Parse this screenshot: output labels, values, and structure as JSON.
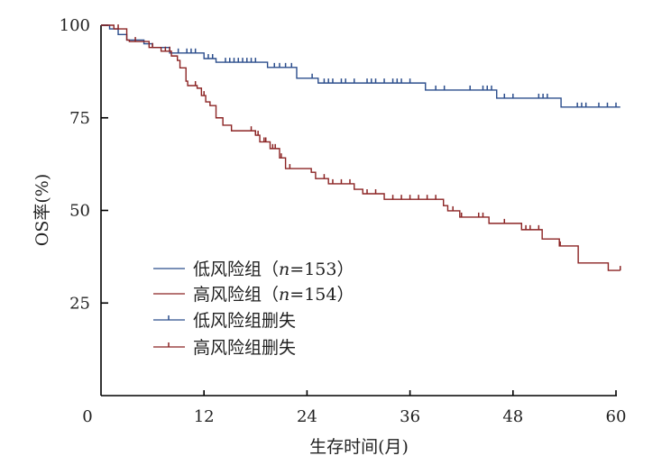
{
  "chart_data": {
    "type": "line",
    "subtype": "kaplan-meier",
    "xlabel": "生存时间(月)",
    "ylabel": "OS率(%)",
    "xlim": [
      0,
      60
    ],
    "ylim": [
      0,
      100
    ],
    "xticks": [
      0,
      12,
      24,
      36,
      48,
      60
    ],
    "yticks": [
      25,
      50,
      75,
      100
    ],
    "legend_position": "lower-left",
    "series": [
      {
        "name": "低风险组",
        "n_label": "n",
        "n_value": "=153）",
        "paren": "（",
        "color": "#2b4d8c",
        "steps": [
          [
            0,
            100
          ],
          [
            1,
            99
          ],
          [
            2,
            97.5
          ],
          [
            3,
            96
          ],
          [
            5,
            95
          ],
          [
            6,
            94
          ],
          [
            8,
            92.5
          ],
          [
            12,
            91
          ],
          [
            13.4,
            90
          ],
          [
            19.4,
            88.6
          ],
          [
            22.8,
            85.7
          ],
          [
            25.3,
            84.4
          ],
          [
            37.8,
            82.5
          ],
          [
            46.1,
            80.3
          ],
          [
            53.6,
            77.9
          ],
          [
            60.5,
            77.9
          ]
        ],
        "censored": [
          9,
          10,
          10.5,
          11,
          12.5,
          13,
          14.5,
          15,
          15.5,
          16,
          16.5,
          17,
          17.5,
          18,
          20.2,
          20.8,
          21.5,
          22.2,
          24.6,
          26,
          26.5,
          27,
          28,
          28.5,
          29.5,
          31,
          31.5,
          32,
          33,
          34,
          34.5,
          35,
          36,
          39,
          40,
          43,
          44.5,
          45,
          45.5,
          47,
          48,
          51,
          51.5,
          52,
          55.5,
          56,
          56.5,
          58,
          59,
          60
        ]
      },
      {
        "name": "高风险组",
        "n_label": "n",
        "n_value": "=154）",
        "paren": "（",
        "color": "#8b2323",
        "steps": [
          [
            0,
            100
          ],
          [
            1.5,
            99
          ],
          [
            3,
            96
          ],
          [
            3.3,
            95.6
          ],
          [
            5.6,
            94
          ],
          [
            7,
            93
          ],
          [
            8.2,
            91.7
          ],
          [
            8.9,
            90.5
          ],
          [
            9.2,
            88.5
          ],
          [
            9.9,
            84.9
          ],
          [
            10.1,
            83.7
          ],
          [
            11.2,
            83
          ],
          [
            11.7,
            81
          ],
          [
            12.2,
            79.3
          ],
          [
            12.7,
            78.3
          ],
          [
            13.4,
            75
          ],
          [
            14.2,
            73
          ],
          [
            15.2,
            71.5
          ],
          [
            18,
            70.3
          ],
          [
            18.5,
            68.5
          ],
          [
            19.7,
            66.7
          ],
          [
            20.8,
            64.2
          ],
          [
            21.5,
            61.3
          ],
          [
            24.5,
            60.3
          ],
          [
            25,
            58.6
          ],
          [
            26.5,
            57.2
          ],
          [
            29.5,
            55.7
          ],
          [
            30.5,
            54.5
          ],
          [
            33,
            53
          ],
          [
            39.9,
            51.3
          ],
          [
            40.4,
            49.9
          ],
          [
            41.8,
            48.2
          ],
          [
            45.2,
            46.5
          ],
          [
            49,
            44.8
          ],
          [
            51.4,
            42.3
          ],
          [
            53.4,
            40.4
          ],
          [
            55.6,
            35.8
          ],
          [
            59.1,
            33.8
          ],
          [
            60.5,
            33.8
          ]
        ],
        "censored": [
          2,
          4,
          6,
          7.5,
          8,
          11,
          12,
          17.5,
          18,
          18.3,
          19,
          19.2,
          20,
          20.3,
          21,
          22,
          26,
          27,
          28,
          29,
          31,
          32,
          34,
          35,
          36,
          37,
          38,
          39,
          41,
          42,
          44,
          44.5,
          47,
          49.5,
          50,
          51,
          53.5,
          60.5
        ]
      }
    ],
    "legend": [
      {
        "label": "低风险组",
        "suffix": "（",
        "italic": "n",
        "rest": "=153）"
      },
      {
        "label": "高风险组",
        "suffix": "（",
        "italic": "n",
        "rest": "=154）"
      },
      {
        "label": "低风险组删失"
      },
      {
        "label": "高风险组删失"
      }
    ]
  }
}
